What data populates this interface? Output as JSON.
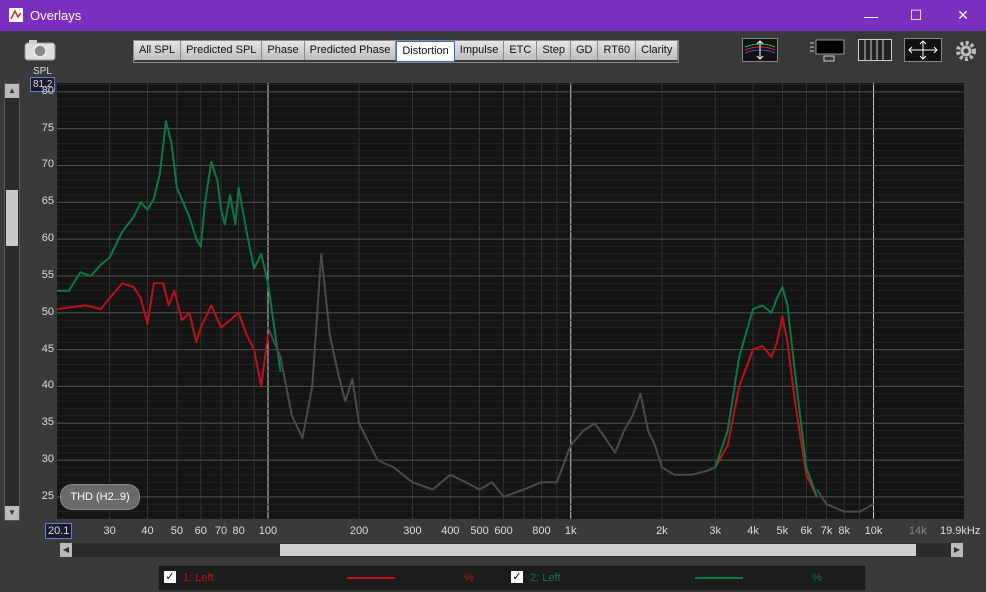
{
  "window": {
    "title": "Overlays",
    "minimize": "—",
    "maximize": "☐",
    "close": "✕"
  },
  "tabs": [
    {
      "label": "All SPL"
    },
    {
      "label": "Predicted SPL"
    },
    {
      "label": "Phase"
    },
    {
      "label": "Predicted Phase"
    },
    {
      "label": "Distortion",
      "active": true
    },
    {
      "label": "Impulse"
    },
    {
      "label": "ETC"
    },
    {
      "label": "Step"
    },
    {
      "label": "GD"
    },
    {
      "label": "RT60"
    },
    {
      "label": "Clarity"
    }
  ],
  "plot": {
    "y_axis_name": "SPL",
    "y_cursor_value": "81.2",
    "x_cursor_value": "20.1",
    "x_end_label": "19.9kHz",
    "thd_button": "THD (H2..9)"
  },
  "legend": [
    {
      "checked": "✓",
      "label": "1: Left",
      "unit": "%",
      "color": "#c0101a"
    },
    {
      "checked": "✓",
      "label": "2: Left",
      "unit": "%",
      "color": "#0a7a45"
    }
  ],
  "colors": {
    "red_trace": "#c0101a",
    "green_trace": "#0a7a45",
    "grey_trace": "#4a4a4a",
    "title_bar": "#7b2fbf"
  },
  "chart_data": {
    "type": "line",
    "title": "",
    "xlabel": "",
    "ylabel": "SPL",
    "xscale": "log",
    "xlim": [
      20.1,
      19900
    ],
    "ylim": [
      22,
      81.2
    ],
    "yticks": [
      25,
      30,
      35,
      40,
      45,
      50,
      55,
      60,
      65,
      70,
      75,
      80
    ],
    "xtick_labels": [
      "30",
      "40",
      "50",
      "60",
      "70",
      "80",
      "100",
      "200",
      "300",
      "400",
      "500",
      "600",
      "800",
      "1k",
      "2k",
      "3k",
      "4k",
      "5k",
      "6k",
      "7k",
      "8k",
      "10k",
      "14k"
    ],
    "xtick_values": [
      30,
      40,
      50,
      60,
      70,
      80,
      100,
      200,
      300,
      400,
      500,
      600,
      800,
      1000,
      2000,
      3000,
      4000,
      5000,
      6000,
      7000,
      8000,
      10000,
      14000
    ],
    "grid": true,
    "series": [
      {
        "name": "1: Left",
        "color": "#c0101a",
        "points": [
          [
            20,
            50.5
          ],
          [
            25,
            51
          ],
          [
            28,
            50.5
          ],
          [
            30,
            52
          ],
          [
            33,
            54
          ],
          [
            36,
            53.5
          ],
          [
            38,
            52
          ],
          [
            40,
            48.5
          ],
          [
            42,
            54
          ],
          [
            45,
            54
          ],
          [
            47,
            51
          ],
          [
            49,
            53
          ],
          [
            52,
            49
          ],
          [
            55,
            50
          ],
          [
            58,
            46
          ],
          [
            60,
            48
          ],
          [
            65,
            51
          ],
          [
            70,
            48
          ],
          [
            75,
            49
          ],
          [
            80,
            50
          ],
          [
            85,
            47
          ],
          [
            90,
            45
          ],
          [
            95,
            40
          ],
          [
            100,
            47
          ]
        ]
      },
      {
        "name": "2: Left",
        "color": "#0a7a45",
        "points": [
          [
            20,
            53
          ],
          [
            22,
            53
          ],
          [
            24,
            55.5
          ],
          [
            26,
            55
          ],
          [
            28,
            56.5
          ],
          [
            30,
            57.5
          ],
          [
            33,
            61
          ],
          [
            36,
            63
          ],
          [
            38,
            65
          ],
          [
            40,
            64
          ],
          [
            42,
            65.5
          ],
          [
            44,
            69
          ],
          [
            46,
            76
          ],
          [
            48,
            73
          ],
          [
            50,
            67
          ],
          [
            55,
            63
          ],
          [
            58,
            60
          ],
          [
            60,
            59
          ],
          [
            62,
            65
          ],
          [
            65,
            70.5
          ],
          [
            68,
            68
          ],
          [
            70,
            64
          ],
          [
            72,
            62
          ],
          [
            75,
            66
          ],
          [
            78,
            62
          ],
          [
            80,
            67
          ],
          [
            85,
            61
          ],
          [
            90,
            56
          ],
          [
            95,
            58
          ],
          [
            100,
            54
          ],
          [
            110,
            42
          ]
        ]
      },
      {
        "name": "",
        "color": "#4a4a4a",
        "points": [
          [
            100,
            48
          ],
          [
            110,
            44
          ],
          [
            120,
            36
          ],
          [
            130,
            33
          ],
          [
            140,
            40
          ],
          [
            150,
            58
          ],
          [
            160,
            47
          ],
          [
            170,
            42
          ],
          [
            180,
            38
          ],
          [
            190,
            41
          ],
          [
            200,
            35
          ],
          [
            230,
            30
          ],
          [
            260,
            29
          ],
          [
            300,
            27
          ],
          [
            350,
            26
          ],
          [
            400,
            28
          ],
          [
            450,
            27
          ],
          [
            500,
            26
          ],
          [
            550,
            27
          ],
          [
            600,
            25
          ],
          [
            700,
            26
          ],
          [
            800,
            27
          ],
          [
            900,
            27
          ],
          [
            1000,
            32
          ],
          [
            1100,
            34
          ],
          [
            1200,
            35
          ],
          [
            1300,
            33
          ],
          [
            1400,
            31
          ],
          [
            1500,
            34
          ],
          [
            1600,
            36
          ],
          [
            1700,
            39
          ],
          [
            1800,
            34
          ],
          [
            1900,
            32
          ],
          [
            2000,
            29
          ],
          [
            2200,
            28
          ],
          [
            2500,
            28
          ],
          [
            2800,
            28.5
          ],
          [
            3000,
            29
          ]
        ]
      },
      {
        "name": "",
        "color": "#c0101a",
        "points": [
          [
            3000,
            29
          ],
          [
            3300,
            32
          ],
          [
            3600,
            40
          ],
          [
            4000,
            45
          ],
          [
            4300,
            45.5
          ],
          [
            4600,
            44
          ],
          [
            4800,
            46
          ],
          [
            5000,
            49.5
          ],
          [
            5200,
            46
          ],
          [
            5500,
            38
          ],
          [
            6000,
            28
          ],
          [
            6500,
            25
          ]
        ]
      },
      {
        "name": "",
        "color": "#0a7a45",
        "points": [
          [
            3000,
            29
          ],
          [
            3300,
            34
          ],
          [
            3600,
            44
          ],
          [
            4000,
            50.5
          ],
          [
            4300,
            51
          ],
          [
            4600,
            50
          ],
          [
            4800,
            52
          ],
          [
            5000,
            53.5
          ],
          [
            5200,
            51
          ],
          [
            5500,
            42
          ],
          [
            6000,
            29
          ],
          [
            6500,
            25
          ]
        ]
      },
      {
        "name": "",
        "color": "#4a4a4a",
        "points": [
          [
            6500,
            26
          ],
          [
            7000,
            24
          ],
          [
            7500,
            23.5
          ],
          [
            8000,
            23
          ],
          [
            9000,
            23
          ],
          [
            10000,
            24
          ]
        ]
      }
    ]
  }
}
